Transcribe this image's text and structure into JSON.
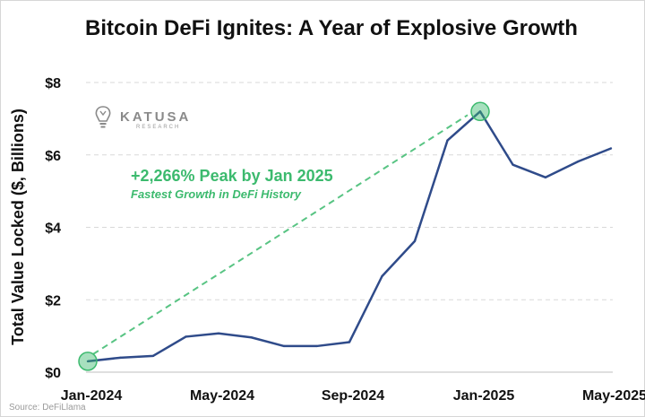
{
  "chart_data": {
    "type": "line",
    "title": "Bitcoin DeFi Ignites: A Year of Explosive Growth",
    "xlabel": "",
    "ylabel": "Total Value Locked ($, Billions)",
    "x_tick_labels": [
      "Jan-2024",
      "May-2024",
      "Sep-2024",
      "Jan-2025",
      "May-2025"
    ],
    "y_tick_labels": [
      "$0",
      "$2",
      "$4",
      "$6",
      "$8"
    ],
    "ylim": [
      0,
      8
    ],
    "grid": "horizontal",
    "series": [
      {
        "color": "#2f4b8a",
        "x": [
          "2024-01",
          "2024-02",
          "2024-03",
          "2024-04",
          "2024-05",
          "2024-06",
          "2024-07",
          "2024-08",
          "2024-09",
          "2024-10",
          "2024-11",
          "2024-12",
          "2025-01",
          "2025-02",
          "2025-03",
          "2025-04",
          "2025-05"
        ],
        "values": [
          0.3,
          0.4,
          0.45,
          0.98,
          1.07,
          0.96,
          0.72,
          0.72,
          0.83,
          2.65,
          3.62,
          6.4,
          7.2,
          5.73,
          5.38,
          5.82,
          6.18
        ]
      }
    ],
    "annotations": {
      "main": "+2,266% Peak by Jan 2025",
      "sub": "Fastest Growth in DeFi History",
      "color": "#3cba6e"
    },
    "logo": {
      "name": "KATUSA",
      "sub": "RESEARCH"
    },
    "source": "Source: DeFiLlama"
  }
}
